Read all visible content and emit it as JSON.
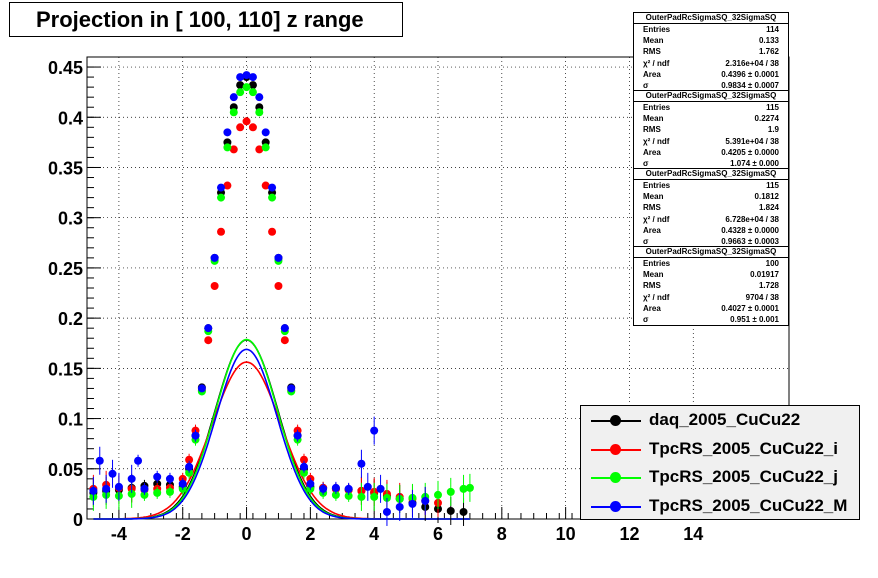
{
  "title": "Projection in [ 100, 110] z range",
  "chart_data": {
    "type": "scatter",
    "title": "Projection in [ 100, 110] z range",
    "xlim": [
      -5,
      17
    ],
    "ylim": [
      0,
      0.46
    ],
    "x_ticks": [
      -4,
      -2,
      0,
      2,
      4,
      6,
      8,
      10,
      12,
      14
    ],
    "x_tick_labels": [
      "-4",
      "-2",
      "0",
      "2",
      "4",
      "6",
      "8",
      "10",
      "12",
      "14"
    ],
    "y_ticks": [
      0,
      0.05,
      0.1,
      0.15,
      0.2,
      0.25,
      0.3,
      0.35,
      0.4,
      0.45
    ],
    "y_tick_labels": [
      "0",
      "0.05",
      "0.1",
      "0.15",
      "0.2",
      "0.25",
      "0.3",
      "0.35",
      "0.4",
      "0.45"
    ],
    "grid": true,
    "legend_position": "bottom-right",
    "series": [
      {
        "name": "daq_2005_CuCu22",
        "color": "#000000",
        "fit_area": 0.4396,
        "fit_sigma": 0.9834,
        "plateau": 0.03,
        "x": [
          -4.8,
          -4.4,
          -4,
          -3.6,
          -3.2,
          -2.8,
          -2.4,
          -2,
          -1.8,
          -1.6,
          -1.4,
          -1.2,
          -1,
          -0.8,
          -0.6,
          -0.4,
          -0.2,
          0,
          0.2,
          0.4,
          0.6,
          0.8,
          1,
          1.2,
          1.4,
          1.6,
          1.8,
          2,
          2.4,
          2.8,
          3.2,
          3.6,
          4,
          4.4,
          4.8,
          5.2,
          5.6,
          6,
          6.4,
          6.8
        ],
        "y": [
          0.026,
          0.028,
          0.029,
          0.031,
          0.033,
          0.035,
          0.034,
          0.032,
          0.05,
          0.083,
          0.131,
          0.19,
          0.26,
          0.325,
          0.375,
          0.41,
          0.432,
          0.44,
          0.432,
          0.41,
          0.375,
          0.325,
          0.26,
          0.19,
          0.131,
          0.083,
          0.05,
          0.032,
          0.031,
          0.03,
          0.029,
          0.028,
          0.026,
          0.023,
          0.02,
          0.016,
          0.012,
          0.01,
          0.008,
          0.007
        ]
      },
      {
        "name": "TpcRS_2005_CuCu22_i",
        "color": "#ff0000",
        "fit_area": 0.4205,
        "fit_sigma": 1.074,
        "plateau": 0.03,
        "x": [
          -4.8,
          -4.4,
          -4,
          -3.6,
          -3.2,
          -2.8,
          -2.4,
          -2,
          -1.8,
          -1.6,
          -1.4,
          -1.2,
          -1,
          -0.8,
          -0.6,
          -0.4,
          -0.2,
          0,
          0.2,
          0.4,
          0.6,
          0.8,
          1,
          1.2,
          1.4,
          1.6,
          1.8,
          2,
          2.4,
          2.8,
          3.2,
          3.6,
          4,
          4.4,
          4.8,
          5.2,
          5.6,
          6
        ],
        "y": [
          0.03,
          0.034,
          0.031,
          0.03,
          0.029,
          0.03,
          0.031,
          0.04,
          0.059,
          0.088,
          0.128,
          0.178,
          0.232,
          0.286,
          0.332,
          0.368,
          0.39,
          0.396,
          0.39,
          0.368,
          0.332,
          0.286,
          0.232,
          0.178,
          0.128,
          0.088,
          0.059,
          0.04,
          0.031,
          0.03,
          0.029,
          0.028,
          0.027,
          0.025,
          0.022,
          0.02,
          0.018,
          0.016
        ]
      },
      {
        "name": "TpcRS_2005_CuCu22_j",
        "color": "#00ff00",
        "fit_area": 0.4328,
        "fit_sigma": 0.9663,
        "plateau": 0.03,
        "x": [
          -4.8,
          -4.4,
          -4,
          -3.6,
          -3.2,
          -2.8,
          -2.4,
          -2,
          -1.8,
          -1.6,
          -1.4,
          -1.2,
          -1,
          -0.8,
          -0.6,
          -0.4,
          -0.2,
          0,
          0.2,
          0.4,
          0.6,
          0.8,
          1,
          1.2,
          1.4,
          1.6,
          1.8,
          2,
          2.4,
          2.8,
          3.2,
          3.6,
          4,
          4.4,
          4.8,
          5.2,
          5.6,
          6,
          6.4,
          6.8,
          7
        ],
        "y": [
          0.022,
          0.024,
          0.023,
          0.025,
          0.024,
          0.026,
          0.027,
          0.03,
          0.046,
          0.079,
          0.127,
          0.187,
          0.257,
          0.32,
          0.37,
          0.405,
          0.425,
          0.43,
          0.425,
          0.405,
          0.37,
          0.32,
          0.257,
          0.187,
          0.127,
          0.079,
          0.046,
          0.03,
          0.026,
          0.024,
          0.023,
          0.022,
          0.022,
          0.021,
          0.02,
          0.021,
          0.022,
          0.024,
          0.027,
          0.03,
          0.031
        ]
      },
      {
        "name": "TpcRS_2005_CuCu22_M",
        "color": "#0000ff",
        "fit_area": 0.4027,
        "fit_sigma": 0.951,
        "plateau": 0.03,
        "x": [
          -4.8,
          -4.6,
          -4.4,
          -4.2,
          -4,
          -3.6,
          -3.4,
          -3.2,
          -2.8,
          -2.4,
          -2,
          -1.8,
          -1.6,
          -1.4,
          -1.2,
          -1,
          -0.8,
          -0.6,
          -0.4,
          -0.2,
          0,
          0.2,
          0.4,
          0.6,
          0.8,
          1,
          1.2,
          1.4,
          1.6,
          1.8,
          2,
          2.4,
          2.8,
          3.2,
          3.6,
          3.8,
          4,
          4.2,
          4.4,
          4.8,
          5.2,
          5.6
        ],
        "y": [
          0.028,
          0.058,
          0.03,
          0.045,
          0.032,
          0.04,
          0.058,
          0.03,
          0.042,
          0.04,
          0.035,
          0.052,
          0.083,
          0.13,
          0.19,
          0.26,
          0.33,
          0.385,
          0.42,
          0.44,
          0.442,
          0.44,
          0.42,
          0.385,
          0.33,
          0.26,
          0.19,
          0.13,
          0.083,
          0.052,
          0.035,
          0.03,
          0.031,
          0.03,
          0.055,
          0.032,
          0.088,
          0.03,
          0.007,
          0.012,
          0.015,
          0.018
        ]
      }
    ]
  },
  "stats": [
    {
      "name": "OuterPadRcSigmaSQ_32SigmaSQ",
      "rows": [
        {
          "label": "Entries",
          "value": "114"
        },
        {
          "label": "Mean",
          "value": "0.133"
        },
        {
          "label": "RMS",
          "value": "1.762"
        },
        {
          "label": "χ² / ndf",
          "value": "2.316e+04 / 38"
        },
        {
          "label": "Area",
          "value": "0.4396 ± 0.0001"
        },
        {
          "label": "σ",
          "value": "0.9834 ± 0.0007"
        }
      ]
    },
    {
      "name": "OuterPadRcSigmaSQ_32SigmaSQ",
      "rows": [
        {
          "label": "Entries",
          "value": "115"
        },
        {
          "label": "Mean",
          "value": "0.2274"
        },
        {
          "label": "RMS",
          "value": "1.9"
        },
        {
          "label": "χ² / ndf",
          "value": "5.391e+04 / 38"
        },
        {
          "label": "Area",
          "value": "0.4205 ± 0.0000"
        },
        {
          "label": "σ",
          "value": "1.074 ± 0.000"
        }
      ]
    },
    {
      "name": "OuterPadRcSigmaSQ_32SigmaSQ",
      "rows": [
        {
          "label": "Entries",
          "value": "115"
        },
        {
          "label": "Mean",
          "value": "0.1812"
        },
        {
          "label": "RMS",
          "value": "1.824"
        },
        {
          "label": "χ² / ndf",
          "value": "6.728e+04 / 38"
        },
        {
          "label": "Area",
          "value": "0.4328 ± 0.0000"
        },
        {
          "label": "σ",
          "value": "0.9663 ± 0.0003"
        }
      ]
    },
    {
      "name": "OuterPadRcSigmaSQ_32SigmaSQ",
      "rows": [
        {
          "label": "Entries",
          "value": "100"
        },
        {
          "label": "Mean",
          "value": "0.01917"
        },
        {
          "label": "RMS",
          "value": "1.728"
        },
        {
          "label": "χ² / ndf",
          "value": "9704 / 38"
        },
        {
          "label": "Area",
          "value": "0.4027 ± 0.0001"
        },
        {
          "label": "σ",
          "value": "0.951 ± 0.001"
        }
      ]
    }
  ],
  "legend": [
    {
      "label": "daq_2005_CuCu22",
      "color": "#000000"
    },
    {
      "label": "TpcRS_2005_CuCu22_i",
      "color": "#ff0000"
    },
    {
      "label": "TpcRS_2005_CuCu22_j",
      "color": "#00ff00"
    },
    {
      "label": "TpcRS_2005_CuCu22_M",
      "color": "#0000ff"
    }
  ]
}
